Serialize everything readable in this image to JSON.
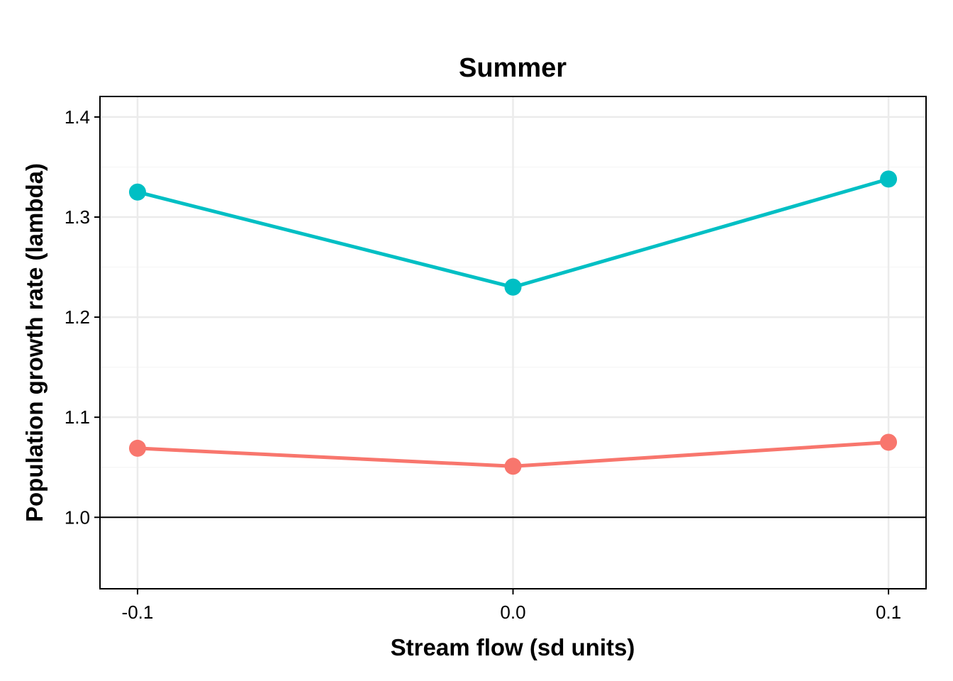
{
  "chart_data": {
    "type": "line",
    "title": "Summer",
    "xlabel": "Stream flow (sd units)",
    "ylabel": "Population growth rate (lambda)",
    "x": [
      -0.1,
      0.0,
      0.1
    ],
    "x_tick_labels": [
      "-0.1",
      "0.0",
      "0.1"
    ],
    "y_ticks": [
      1.0,
      1.1,
      1.2,
      1.3,
      1.4
    ],
    "y_tick_labels": [
      "1.0",
      "1.1",
      "1.2",
      "1.3",
      "1.4"
    ],
    "xlim": [
      -0.11,
      0.11
    ],
    "ylim": [
      0.9286,
      1.4205
    ],
    "reference_line_y": 1.0,
    "grid": true,
    "series": [
      {
        "color": "#00BFC4",
        "values": [
          1.325,
          1.23,
          1.338
        ]
      },
      {
        "color": "#F8766D",
        "values": [
          1.069,
          1.051,
          1.075
        ]
      }
    ]
  }
}
